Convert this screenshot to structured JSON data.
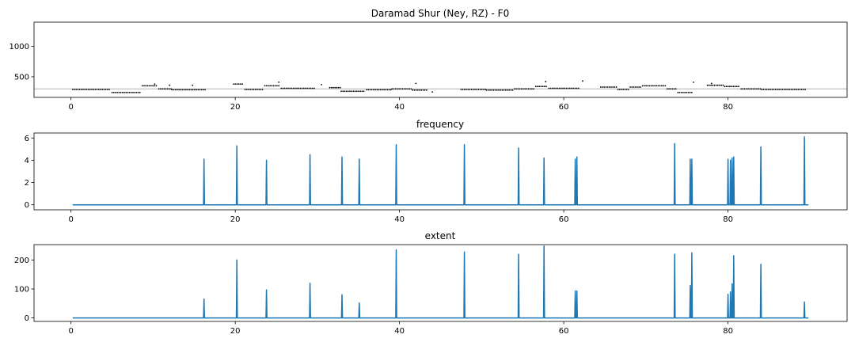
{
  "colors": {
    "series": "#1f77b4",
    "f0_points": "#000000",
    "reference_line": "#b0b0b0"
  },
  "chart_data": [
    {
      "type": "scatter",
      "title": "Daramad Shur (Ney, RZ) - F0",
      "xlabel": "",
      "ylabel": "",
      "xlim": [
        -4.5,
        94.5
      ],
      "ylim": [
        160,
        1400
      ],
      "xticks": [
        0,
        20,
        40,
        60,
        80
      ],
      "yticks": [
        500,
        1000
      ],
      "grid": false,
      "reference_line_y": 300,
      "segments": [
        {
          "x0": 0.2,
          "x1": 4.8,
          "y": 290
        },
        {
          "x0": 5.0,
          "x1": 8.5,
          "y": 240
        },
        {
          "x0": 8.7,
          "x1": 10.6,
          "y": 350
        },
        {
          "x0": 10.7,
          "x1": 12.2,
          "y": 300
        },
        {
          "x0": 12.3,
          "x1": 16.5,
          "y": 285
        },
        {
          "x0": 19.8,
          "x1": 21.0,
          "y": 380
        },
        {
          "x0": 21.2,
          "x1": 23.5,
          "y": 290
        },
        {
          "x0": 23.6,
          "x1": 25.5,
          "y": 350
        },
        {
          "x0": 25.6,
          "x1": 29.8,
          "y": 310
        },
        {
          "x0": 31.5,
          "x1": 32.8,
          "y": 320
        },
        {
          "x0": 32.9,
          "x1": 35.8,
          "y": 260
        },
        {
          "x0": 36.0,
          "x1": 39.0,
          "y": 285
        },
        {
          "x0": 39.1,
          "x1": 41.5,
          "y": 300
        },
        {
          "x0": 41.6,
          "x1": 43.5,
          "y": 280
        },
        {
          "x0": 47.5,
          "x1": 50.5,
          "y": 290
        },
        {
          "x0": 50.6,
          "x1": 53.8,
          "y": 280
        },
        {
          "x0": 54.0,
          "x1": 56.5,
          "y": 300
        },
        {
          "x0": 56.6,
          "x1": 58.0,
          "y": 340
        },
        {
          "x0": 58.2,
          "x1": 62.0,
          "y": 310
        },
        {
          "x0": 64.5,
          "x1": 66.5,
          "y": 330
        },
        {
          "x0": 66.6,
          "x1": 68.0,
          "y": 290
        },
        {
          "x0": 68.1,
          "x1": 69.5,
          "y": 330
        },
        {
          "x0": 69.6,
          "x1": 72.5,
          "y": 350
        },
        {
          "x0": 72.6,
          "x1": 73.8,
          "y": 300
        },
        {
          "x0": 73.9,
          "x1": 75.6,
          "y": 240
        },
        {
          "x0": 77.5,
          "x1": 79.5,
          "y": 360
        },
        {
          "x0": 79.6,
          "x1": 81.5,
          "y": 340
        },
        {
          "x0": 81.6,
          "x1": 84.0,
          "y": 300
        },
        {
          "x0": 84.1,
          "x1": 89.5,
          "y": 290
        }
      ],
      "outliers": [
        {
          "x": 10.2,
          "y": 380
        },
        {
          "x": 12.0,
          "y": 360
        },
        {
          "x": 14.8,
          "y": 360
        },
        {
          "x": 25.3,
          "y": 410
        },
        {
          "x": 30.5,
          "y": 370
        },
        {
          "x": 42.0,
          "y": 390
        },
        {
          "x": 44.0,
          "y": 250
        },
        {
          "x": 57.8,
          "y": 420
        },
        {
          "x": 62.3,
          "y": 430
        },
        {
          "x": 75.8,
          "y": 410
        },
        {
          "x": 78.0,
          "y": 390
        }
      ]
    },
    {
      "type": "line",
      "title": "frequency",
      "xlabel": "",
      "ylabel": "",
      "xlim": [
        -4.5,
        94.5
      ],
      "ylim": [
        -0.45,
        6.45
      ],
      "xticks": [
        0,
        20,
        40,
        60,
        80
      ],
      "yticks": [
        0,
        2,
        4,
        6
      ],
      "grid": false,
      "x_range": [
        0.2,
        89.8
      ],
      "baseline": 0,
      "spikes": [
        {
          "x": 16.2,
          "y": 4.1
        },
        {
          "x": 20.2,
          "y": 5.3
        },
        {
          "x": 23.8,
          "y": 4.0
        },
        {
          "x": 29.1,
          "y": 4.5
        },
        {
          "x": 33.0,
          "y": 4.3
        },
        {
          "x": 35.1,
          "y": 4.1
        },
        {
          "x": 39.6,
          "y": 5.4
        },
        {
          "x": 47.9,
          "y": 5.4
        },
        {
          "x": 54.5,
          "y": 5.1
        },
        {
          "x": 57.6,
          "y": 4.2
        },
        {
          "x": 61.4,
          "y": 4.1
        },
        {
          "x": 61.6,
          "y": 4.3
        },
        {
          "x": 73.5,
          "y": 5.5
        },
        {
          "x": 75.4,
          "y": 4.1
        },
        {
          "x": 75.6,
          "y": 4.1
        },
        {
          "x": 80.0,
          "y": 4.1
        },
        {
          "x": 80.3,
          "y": 4.0
        },
        {
          "x": 80.5,
          "y": 4.2
        },
        {
          "x": 80.7,
          "y": 4.3
        },
        {
          "x": 84.0,
          "y": 5.2
        },
        {
          "x": 89.3,
          "y": 6.1
        }
      ]
    },
    {
      "type": "line",
      "title": "extent",
      "xlabel": "",
      "ylabel": "",
      "xlim": [
        -4.5,
        94.5
      ],
      "ylim": [
        -12,
        253
      ],
      "xticks": [
        0,
        20,
        40,
        60,
        80
      ],
      "yticks": [
        0,
        100,
        200
      ],
      "grid": false,
      "x_range": [
        0.2,
        89.8
      ],
      "baseline": 0,
      "spikes": [
        {
          "x": 16.2,
          "y": 65
        },
        {
          "x": 20.2,
          "y": 200
        },
        {
          "x": 23.8,
          "y": 97
        },
        {
          "x": 29.1,
          "y": 120
        },
        {
          "x": 33.0,
          "y": 80
        },
        {
          "x": 35.1,
          "y": 52
        },
        {
          "x": 39.6,
          "y": 235
        },
        {
          "x": 47.9,
          "y": 228
        },
        {
          "x": 54.5,
          "y": 220
        },
        {
          "x": 57.6,
          "y": 248
        },
        {
          "x": 61.4,
          "y": 93
        },
        {
          "x": 61.6,
          "y": 93
        },
        {
          "x": 73.5,
          "y": 220
        },
        {
          "x": 75.4,
          "y": 112
        },
        {
          "x": 75.6,
          "y": 225
        },
        {
          "x": 80.0,
          "y": 82
        },
        {
          "x": 80.3,
          "y": 90
        },
        {
          "x": 80.5,
          "y": 118
        },
        {
          "x": 80.7,
          "y": 215
        },
        {
          "x": 84.0,
          "y": 185
        },
        {
          "x": 89.3,
          "y": 55
        }
      ]
    }
  ]
}
